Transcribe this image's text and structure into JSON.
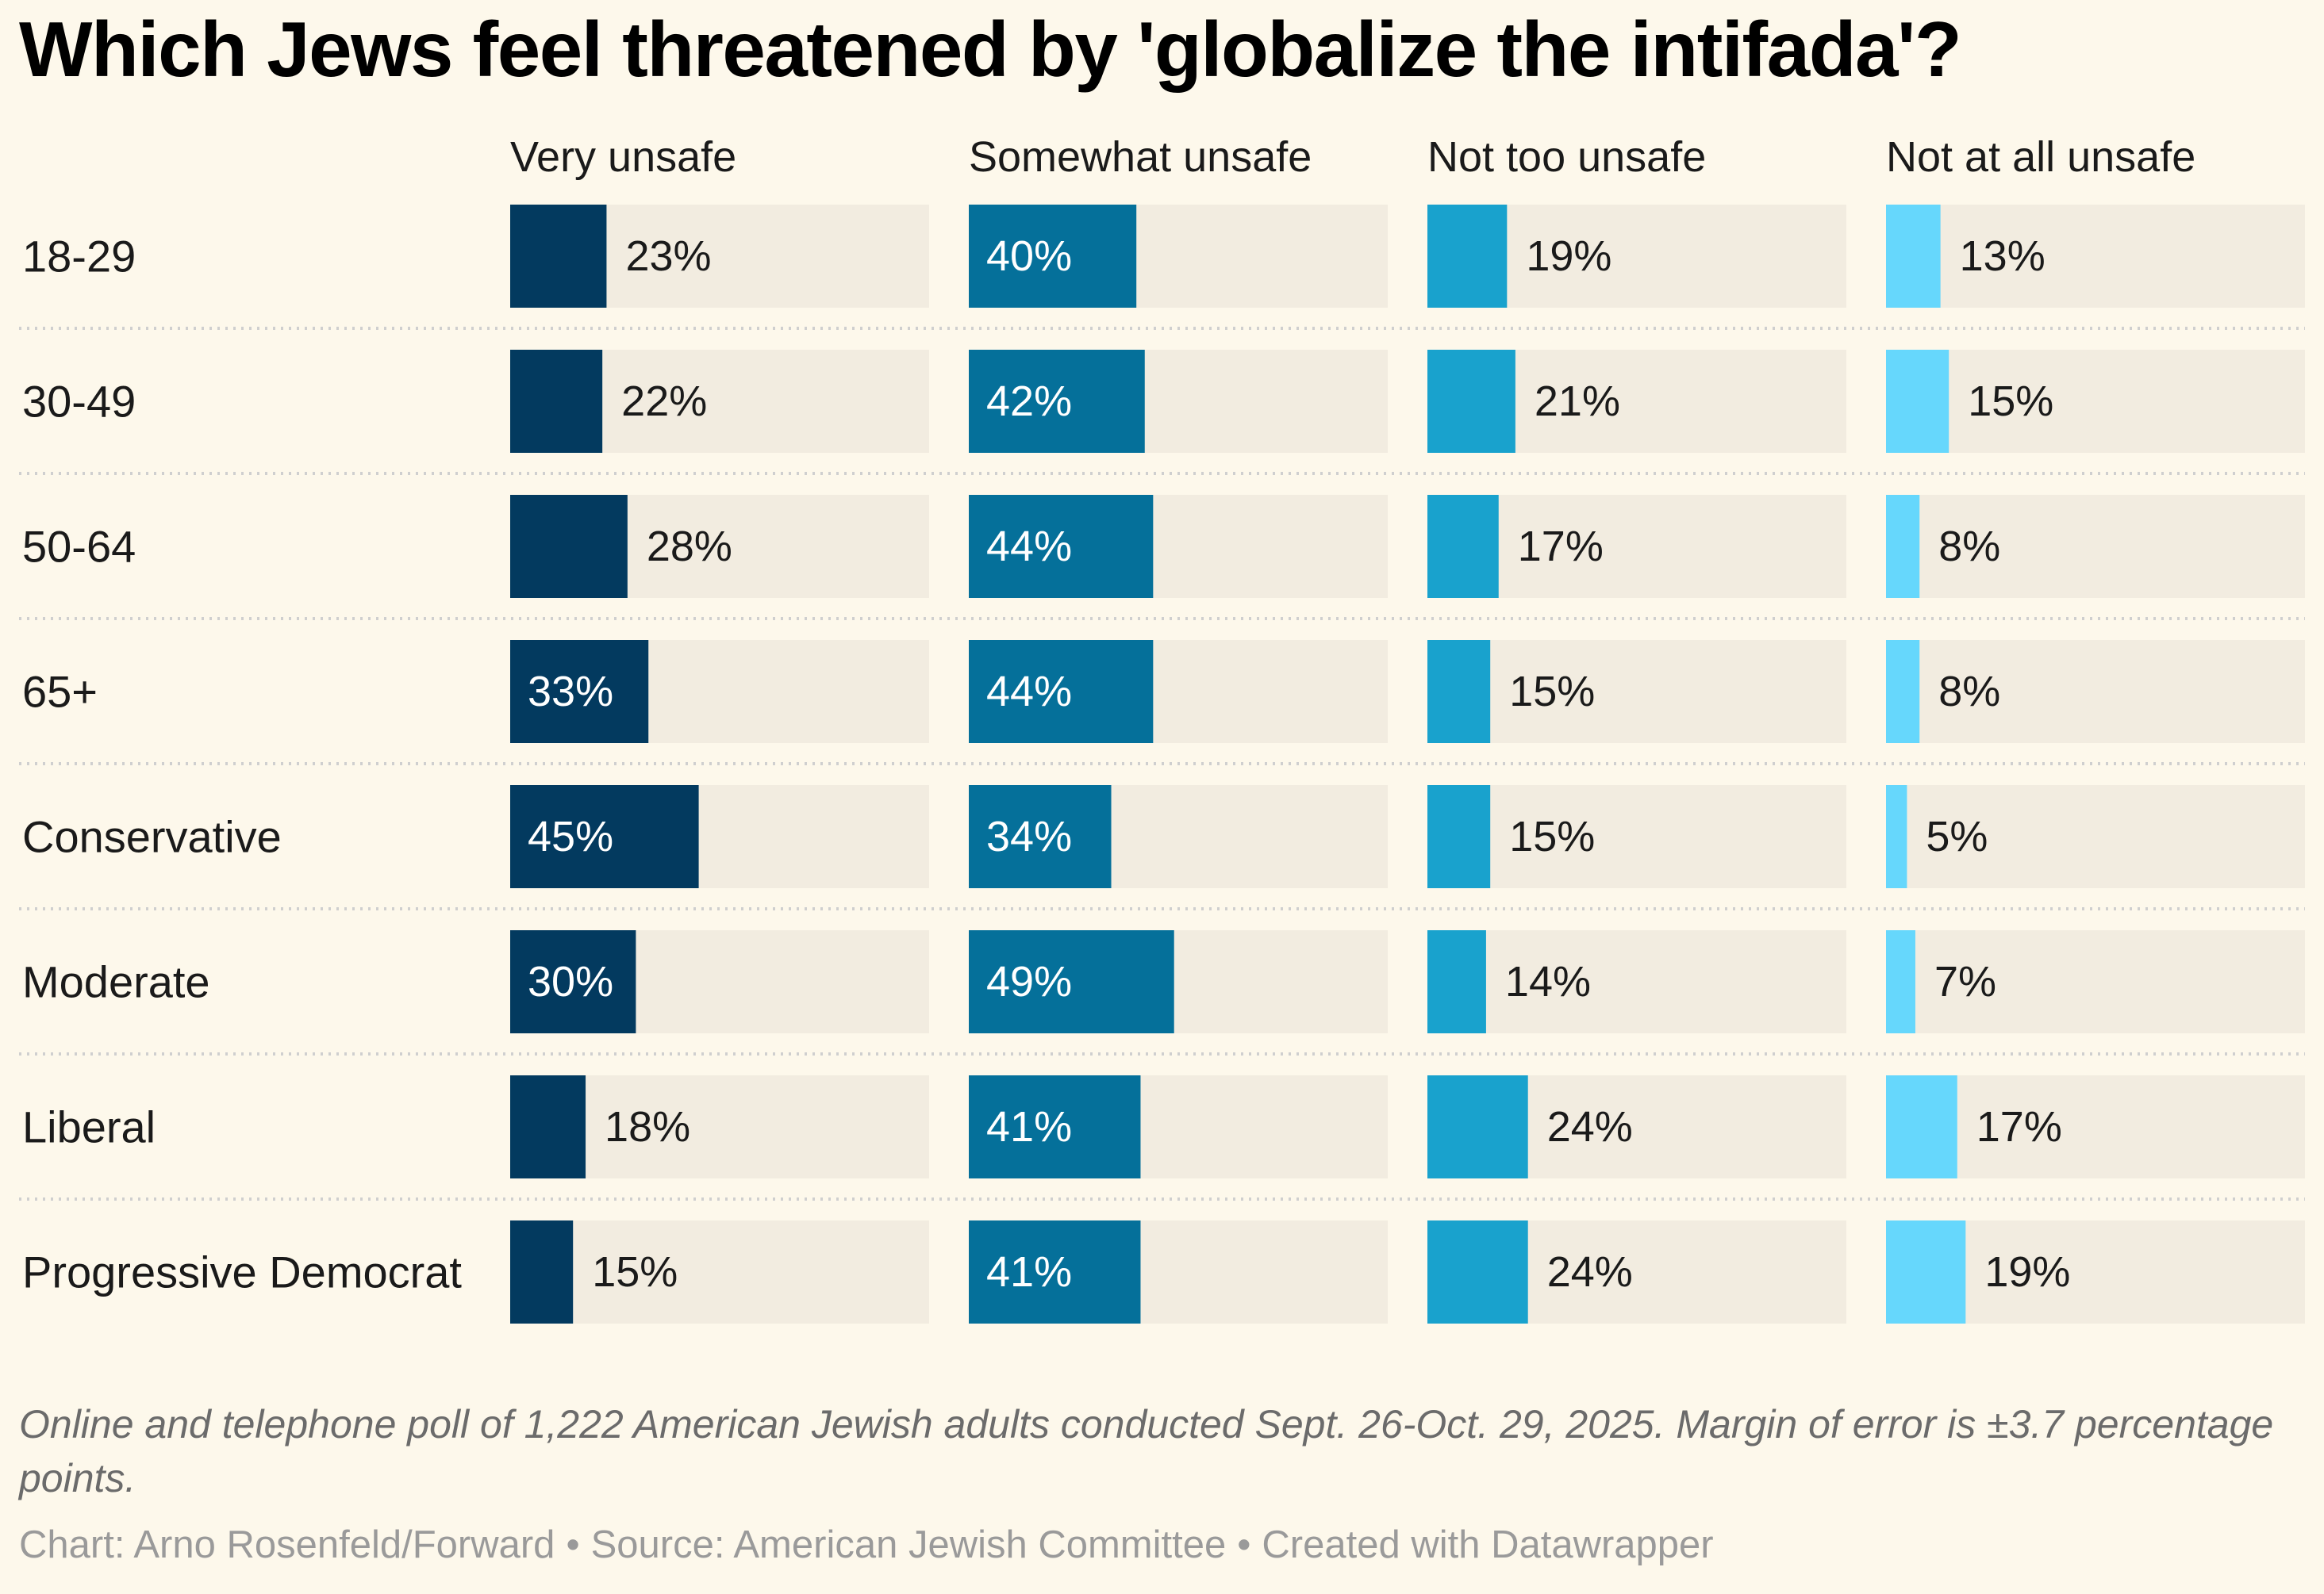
{
  "title": "Which Jews feel threatened by 'globalize the intifada'?",
  "notes": "Online and telephone poll of 1,222 American Jewish adults conducted Sept. 26-Oct. 29, 2025. Margin of error is ±3.7 percentage points.",
  "credits": {
    "chart": "Chart: Arno Rosenfeld/Forward",
    "source": "Source: American Jewish Committee",
    "tool": "Created with Datawrapper",
    "separator": "•"
  },
  "colors": {
    "background": "#fdf8eb",
    "track": "#f2ece0",
    "very_unsafe": "#033a5f",
    "somewhat_unsafe": "#05709a",
    "not_too_unsafe": "#19a2cd",
    "not_at_all_unsafe": "#66d7fc"
  },
  "chart_data": {
    "type": "bar",
    "orientation": "horizontal",
    "layout": "small-multiples",
    "value_suffix": "%",
    "xlim": [
      0,
      100
    ],
    "grid": false,
    "legend": "none",
    "categories": [
      "18-29",
      "30-49",
      "50-64",
      "65+",
      "Conservative",
      "Moderate",
      "Liberal",
      "Progressive Democrat"
    ],
    "series": [
      {
        "name": "Very unsafe",
        "color": "#033a5f",
        "values": [
          23,
          22,
          28,
          33,
          45,
          30,
          18,
          15
        ]
      },
      {
        "name": "Somewhat unsafe",
        "color": "#05709a",
        "values": [
          40,
          42,
          44,
          44,
          34,
          49,
          41,
          41
        ]
      },
      {
        "name": "Not too unsafe",
        "color": "#19a2cd",
        "values": [
          19,
          21,
          17,
          15,
          15,
          14,
          24,
          24
        ]
      },
      {
        "name": "Not at all unsafe",
        "color": "#66d7fc",
        "values": [
          13,
          15,
          8,
          8,
          5,
          7,
          17,
          19
        ]
      }
    ]
  }
}
